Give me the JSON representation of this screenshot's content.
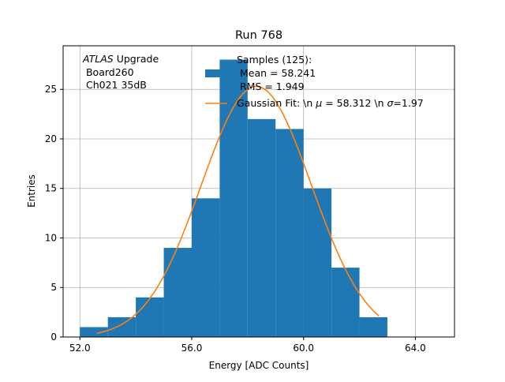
{
  "colors": {
    "bar": "#1f77b4",
    "fit": "#ff7f0e",
    "grid": "#b0b0b0",
    "axis": "#000000"
  },
  "chart_data": {
    "type": "bar",
    "title": "Run 768",
    "xlabel": "Energy [ADC Counts]",
    "ylabel": "Entries",
    "xlim": [
      51.4,
      65.4
    ],
    "ylim": [
      0,
      29.4
    ],
    "grid": true,
    "legend_position": "upper-center",
    "x_ticks": [
      52.0,
      56.0,
      60.0,
      64.0
    ],
    "x_tick_labels": [
      "52.0",
      "56.0",
      "60.0",
      "64.0"
    ],
    "y_ticks": [
      0,
      5,
      10,
      15,
      20,
      25
    ],
    "y_tick_labels": [
      "0",
      "5",
      "10",
      "15",
      "20",
      "25"
    ],
    "bins": [
      {
        "left": 52.0,
        "right": 53.0,
        "count": 1
      },
      {
        "left": 53.0,
        "right": 54.0,
        "count": 2
      },
      {
        "left": 54.0,
        "right": 55.0,
        "count": 4
      },
      {
        "left": 55.0,
        "right": 56.0,
        "count": 9
      },
      {
        "left": 56.0,
        "right": 57.0,
        "count": 14
      },
      {
        "left": 57.0,
        "right": 58.0,
        "count": 28
      },
      {
        "left": 58.0,
        "right": 59.0,
        "count": 22
      },
      {
        "left": 59.0,
        "right": 60.0,
        "count": 21
      },
      {
        "left": 60.0,
        "right": 61.0,
        "count": 15
      },
      {
        "left": 61.0,
        "right": 62.0,
        "count": 7
      },
      {
        "left": 62.0,
        "right": 63.0,
        "count": 2
      }
    ],
    "fit": {
      "type": "gaussian",
      "amplitude": 25.3,
      "mu": 58.312,
      "sigma": 1.97,
      "x_range": [
        52.6,
        62.7
      ]
    },
    "annotation": {
      "line1_italic": "ATLAS",
      "line1_rest": " Upgrade",
      "line2": " Board260",
      "line3": " Ch021 35dB"
    },
    "legend": {
      "hist_line1": "Samples (125):",
      "hist_line2": " Mean = 58.241",
      "hist_line3": " RMS = 1.949",
      "fit_prefix": "Gaussian Fit: \\n ",
      "mu_symbol": "μ",
      "fit_mid": " = 58.312 \\n ",
      "sigma_symbol": "σ",
      "fit_suffix": "=1.97"
    }
  }
}
